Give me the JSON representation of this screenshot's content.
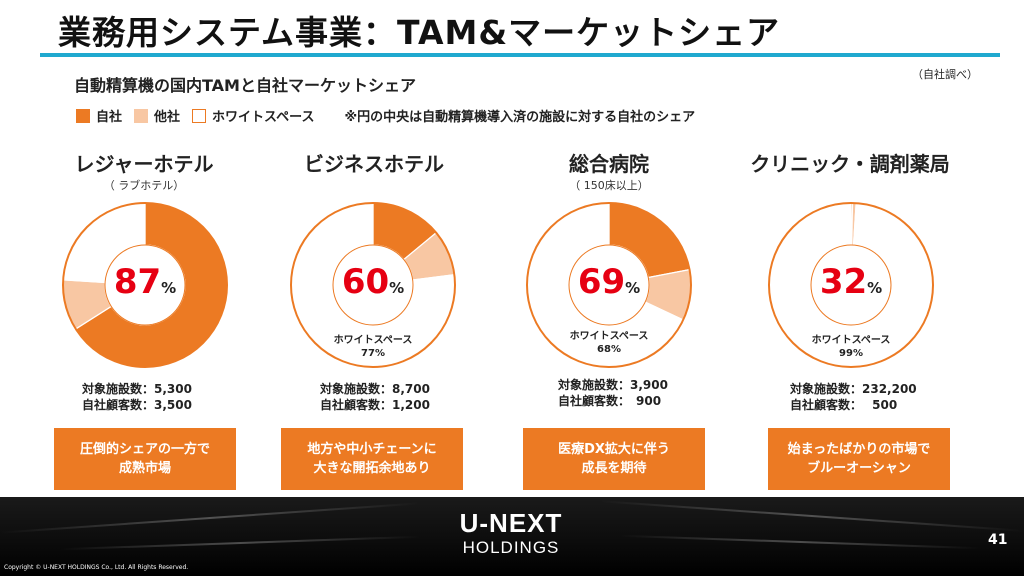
{
  "header": {
    "title": "業務用システム事業：TAM&マーケットシェア",
    "subtitle": "自動精算機の国内TAMと自社マーケットシェア",
    "source_note": "（自社調べ）"
  },
  "legend": {
    "own": "自社",
    "other": "他社",
    "white_space": "ホワイトスペース",
    "note": "※円の中央は自動精算機導入済の施設に対する自社のシェア"
  },
  "colors": {
    "own": "#ec7a23",
    "other": "#f8c7a3",
    "white_space": "#ffffff",
    "accent_rule": "#1fa9cf",
    "share_text": "#e60012"
  },
  "chart_data": [
    {
      "type": "pie",
      "title": "レジャーホテル",
      "subtitle": "（ ラブホテル）",
      "share_label": "87",
      "share_unit": "%",
      "slices": [
        {
          "name": "自社",
          "value": 66
        },
        {
          "name": "他社",
          "value": 10
        },
        {
          "name": "ホワイトスペース",
          "value": 24
        }
      ],
      "white_space_label": "",
      "white_space_value": "",
      "stats_line1": "対象施設数：5,300",
      "stats_line2": "自社顧客数：3,500",
      "callout_line1": "圧倒的シェアの一方で",
      "callout_line2": "成熟市場"
    },
    {
      "type": "pie",
      "title": "ビジネスホテル",
      "subtitle": "",
      "share_label": "60",
      "share_unit": "%",
      "slices": [
        {
          "name": "自社",
          "value": 14
        },
        {
          "name": "他社",
          "value": 9
        },
        {
          "name": "ホワイトスペース",
          "value": 77
        }
      ],
      "white_space_label": "ホワイトスペース",
      "white_space_value": "77%",
      "stats_line1": "対象施設数：8,700",
      "stats_line2": "自社顧客数：1,200",
      "callout_line1": "地方や中小チェーンに",
      "callout_line2": "大きな開拓余地あり"
    },
    {
      "type": "pie",
      "title": "総合病院",
      "subtitle": "（ 150床以上）",
      "share_label": "69",
      "share_unit": "%",
      "slices": [
        {
          "name": "自社",
          "value": 22
        },
        {
          "name": "他社",
          "value": 10
        },
        {
          "name": "ホワイトスペース",
          "value": 68
        }
      ],
      "white_space_label": "ホワイトスペース",
      "white_space_value": "68%",
      "stats_line1": "対象施設数：3,900",
      "stats_line2": "自社顧客数：　900",
      "callout_line1": "医療DX拡大に伴う",
      "callout_line2": "成長を期待"
    },
    {
      "type": "pie",
      "title": "クリニック・調剤薬局",
      "subtitle": "",
      "share_label": "32",
      "share_unit": "%",
      "slices": [
        {
          "name": "自社",
          "value": 0.3
        },
        {
          "name": "他社",
          "value": 0.7
        },
        {
          "name": "ホワイトスペース",
          "value": 99
        }
      ],
      "white_space_label": "ホワイトスペース",
      "white_space_value": "99%",
      "stats_line1": "対象施設数：232,200",
      "stats_line2": "自社顧客数：　 500",
      "callout_line1": "始まったばかりの市場で",
      "callout_line2": "ブルーオーシャン"
    }
  ],
  "footer": {
    "logo_line1": "U-NEXT",
    "logo_line2": "HOLDINGS",
    "page_number": "41",
    "copyright": "Copyright © U-NEXT HOLDINGS Co., Ltd. All Rights Reserved."
  }
}
